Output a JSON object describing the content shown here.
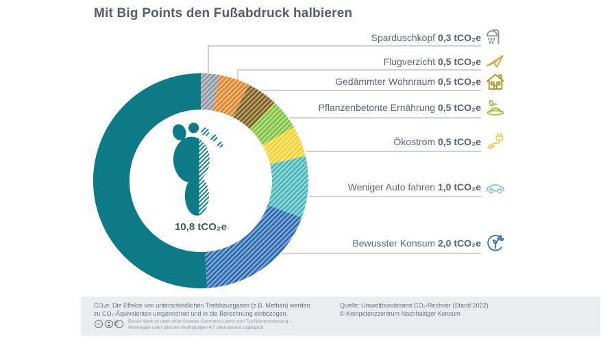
{
  "title": "Mit Big Points den Fußabdruck halbieren",
  "chart_data": {
    "type": "pie",
    "subtype": "donut",
    "title": "Mit Big Points den Fußabdruck halbieren",
    "unit": "tCO₂e",
    "total_value": 10.8,
    "center_label": "10,8 tCO₂e",
    "legend_position": "right",
    "items": [
      {
        "label": "Sparduschkopf",
        "value": 0.3,
        "value_text": "0,3 tCO₂e",
        "color": "#9199a4",
        "hatched": true,
        "icon": "shower-icon",
        "icon_color": "#8a939e"
      },
      {
        "label": "Flugverzicht",
        "value": 0.5,
        "value_text": "0,5 tCO₂e",
        "color": "#e0882e",
        "hatched": true,
        "icon": "airplane-icon",
        "icon_color": "#d9a53e"
      },
      {
        "label": "Gedämmter Wohnraum",
        "value": 0.5,
        "value_text": "0,5 tCO₂e",
        "color": "#806020",
        "hatched": true,
        "icon": "house-icon",
        "icon_color": "#b5941f"
      },
      {
        "label": "Pflanzenbetonte Ernährung",
        "value": 0.5,
        "value_text": "0,5 tCO₂e",
        "color": "#82c341",
        "hatched": true,
        "icon": "meal-icon",
        "icon_color": "#a9bc41"
      },
      {
        "label": "Ökostrom",
        "value": 0.5,
        "value_text": "0,5 tCO₂e",
        "color": "#f5d230",
        "hatched": true,
        "icon": "plug-icon",
        "icon_color": "#e5d44c"
      },
      {
        "label": "Weniger Auto fahren",
        "value": 1.0,
        "value_text": "1,0 tCO₂e",
        "color": "#4bb8bb",
        "hatched": true,
        "icon": "car-icon",
        "icon_color": "#87ceca"
      },
      {
        "label": "Bewusster Konsum",
        "value": 2.0,
        "value_text": "2,0 tCO₂e",
        "color": "#2e6cb4",
        "hatched": true,
        "icon": "consumption-icon",
        "icon_color": "#3a72ae"
      }
    ],
    "remainder": {
      "value": 5.5,
      "color": "#0d7b87",
      "hatched": false
    }
  },
  "footnote": {
    "line1": "CO₂e: Die Effekte von unterschiedlichen Treibhausgasen (z.B. Methan) werden",
    "line2": "zu CO₂-Äquivalenten umgerechnet und in die Berechnung einbezogen."
  },
  "source": {
    "line1": "Quelle: Umweltbundesamt CO₂-Rechner (Stand 2022)",
    "line2": "© Kompetenzzentrum Nachhaltiger Konsum"
  },
  "license": {
    "icons": "cc-by-sa-icons",
    "line1": "Dieses Werk ist unter einer Creative Commons Lizenz vom Typ Namensnennung –",
    "line2": "Weitergabe unter gleichen Bedingungen 4.0 International zugänglich"
  },
  "colors": {
    "accent_teal": "#0d7b87",
    "footer_bg": "#e9edf0",
    "text_dark": "#545e66",
    "text_label": "#5c6873",
    "line_gray": "#9aa4ad"
  }
}
